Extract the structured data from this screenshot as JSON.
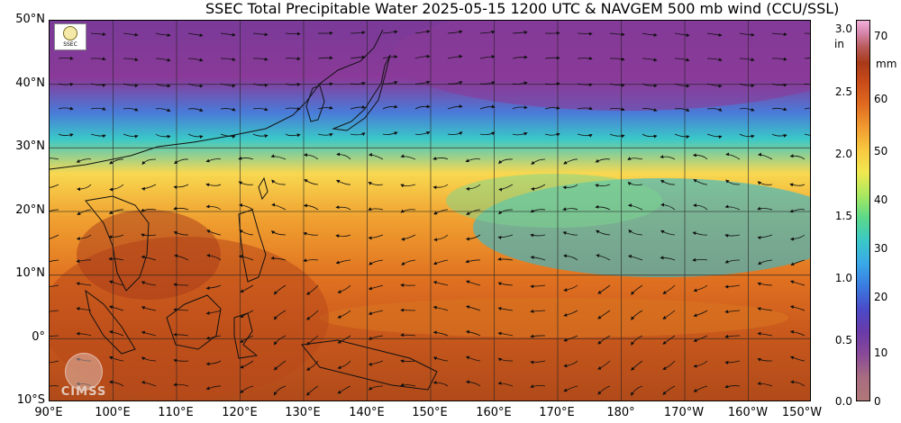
{
  "title": "SSEC Total Precipitable Water  2025-05-15 1200 UTC & NAVGEM 500 mb wind (CCU/SSL)",
  "latitude_labels": [
    "50°N",
    "40°N",
    "30°N",
    "20°N",
    "10°N",
    "0°",
    "10°S"
  ],
  "longitude_labels": [
    "90°E",
    "100°E",
    "110°E",
    "120°E",
    "130°E",
    "140°E",
    "150°E",
    "160°E",
    "170°E",
    "180°",
    "170°W",
    "160°W",
    "150°W"
  ],
  "colorbar": {
    "inch_unit": "in",
    "inch_ticks": [
      "3.0",
      "2.5",
      "2.0",
      "1.5",
      "1.0",
      "0.5",
      "0.0"
    ],
    "mm_unit": "mm",
    "mm_ticks": [
      "70",
      "60",
      "50",
      "40",
      "30",
      "20",
      "10",
      "0"
    ]
  },
  "logos": {
    "ssec_text": "SSEC",
    "cimss_text": "CIMSS"
  },
  "colors": {
    "dry": "#8a3a98",
    "moderate": "#3ac8c8",
    "moist": "#f09a30",
    "very_moist": "#a83a1a"
  }
}
